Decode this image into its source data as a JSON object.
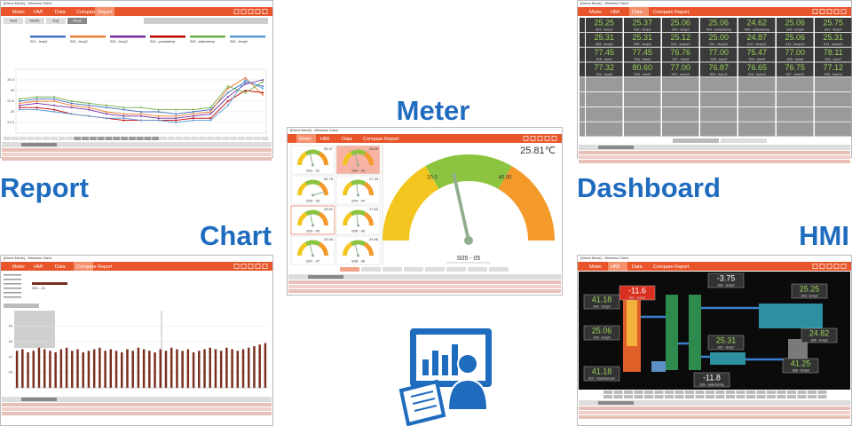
{
  "labels": {
    "report": "Report",
    "meter": "Meter",
    "dashboard": "Dashboard",
    "chart": "Chart",
    "hmi": "HMI"
  },
  "window_title": "[Direct Mode] - Wireless Client",
  "tabs": [
    "Meter",
    "HMI",
    "Data",
    "Compare",
    "Report"
  ],
  "report": {
    "periods": [
      "Year",
      "Month",
      "Day",
      "Week"
    ],
    "ylim": [
      24,
      27
    ],
    "yticks": [
      24.5,
      25,
      25.5,
      26,
      26.5
    ],
    "series": [
      {
        "name": "S01 - temp1",
        "color": "#4472c4",
        "values": [
          25.5,
          25.6,
          25.6,
          25.4,
          25.3,
          25.2,
          25.1,
          25.0,
          25.0,
          24.9,
          25.0,
          25.1,
          25.9,
          26.4,
          26.2
        ]
      },
      {
        "name": "S02 - temp2",
        "color": "#ed7d31",
        "values": [
          25.4,
          25.5,
          25.5,
          25.3,
          25.2,
          25.0,
          24.9,
          24.9,
          24.8,
          24.8,
          24.9,
          25.0,
          26.1,
          26.6,
          25.8
        ]
      },
      {
        "name": "S03 - temp3",
        "color": "#7030a0",
        "values": [
          25.3,
          25.4,
          25.3,
          25.2,
          25.1,
          24.9,
          24.8,
          24.8,
          24.7,
          24.7,
          24.8,
          24.9,
          25.7,
          26.3,
          26.5
        ]
      },
      {
        "name": "S04 - pumpstemp",
        "color": "#c00000",
        "values": [
          25.2,
          25.2,
          25.1,
          24.9,
          24.8,
          24.7,
          24.6,
          24.6,
          24.6,
          24.6,
          24.7,
          24.7,
          25.5,
          26.0,
          25.9
        ]
      },
      {
        "name": "S05 - waterstemp",
        "color": "#70ad47",
        "values": [
          25.6,
          25.7,
          25.7,
          25.5,
          25.4,
          25.3,
          25.2,
          25.2,
          25.1,
          25.1,
          25.1,
          25.2,
          26.2,
          25.9,
          26.4
        ]
      },
      {
        "name": "S06 - temp6",
        "color": "#5b9bd5",
        "values": [
          25.1,
          25.1,
          25.0,
          24.9,
          24.8,
          24.7,
          24.7,
          24.6,
          24.6,
          24.5,
          24.6,
          24.6,
          25.3,
          26.5,
          26.1
        ]
      }
    ]
  },
  "meter": {
    "reading": "25.81℃",
    "gauge_label": "S05 - 05",
    "value": 25.81,
    "ticks": [
      {
        "value": 20,
        "label": "20.0"
      },
      {
        "value": 40,
        "label": "40.00"
      }
    ],
    "small_gauges": [
      {
        "label": "S01 - 01",
        "value": 25.37
      },
      {
        "label": "S02 - 02",
        "value": 25.09
      },
      {
        "label": "S03 - 03",
        "value": 54.75
      },
      {
        "label": "S04 - 04",
        "value": 27.43
      },
      {
        "label": "S05 - 05",
        "value": 25.61
      },
      {
        "label": "S06 - 06",
        "value": 27.62
      },
      {
        "label": "S07 - 07",
        "value": 25.06
      },
      {
        "label": "S08 - 08",
        "value": 24.98
      }
    ]
  },
  "dashboard": {
    "tiles": [
      {
        "value": "25.25",
        "label": "S01 - temp1"
      },
      {
        "value": "25.37",
        "label": "S02 - temp2"
      },
      {
        "value": "25.06",
        "label": "S03 - temp3"
      },
      {
        "value": "25.06",
        "label": "S04 - pumpstemp"
      },
      {
        "value": "24.62",
        "label": "S05 - waterstemp"
      },
      {
        "value": "25.06",
        "label": "S06 - temp6"
      },
      {
        "value": "25.75",
        "label": "S07 - temp7"
      },
      {
        "value": "25.31",
        "label": "S08 - temp8"
      },
      {
        "value": "25.31",
        "label": "S09 - temp9"
      },
      {
        "value": "25.12",
        "label": "S10 - temp10"
      },
      {
        "value": "25.00",
        "label": "S11 - temp11"
      },
      {
        "value": "24.87",
        "label": "S12 - temp12"
      },
      {
        "value": "25.06",
        "label": "S13 - temp13"
      },
      {
        "value": "25.31",
        "label": "S14 - temp14"
      },
      {
        "value": "77.45",
        "label": "S15 - hum1"
      },
      {
        "value": "77.45",
        "label": "S16 - hum2"
      },
      {
        "value": "76.76",
        "label": "S17 - hum3"
      },
      {
        "value": "77.00",
        "label": "S18 - hum4"
      },
      {
        "value": "75.47",
        "label": "S19 - hum5"
      },
      {
        "value": "77.00",
        "label": "S20 - hum6"
      },
      {
        "value": "78.11",
        "label": "S21 - hum7"
      },
      {
        "value": "77.32",
        "label": "S22 - hum8"
      },
      {
        "value": "80.60",
        "label": "S23 - hum9"
      },
      {
        "value": "77.00",
        "label": "S24 - hum10"
      },
      {
        "value": "76.87",
        "label": "S25 - hum11"
      },
      {
        "value": "76.65",
        "label": "S26 - hum12"
      },
      {
        "value": "76.75",
        "label": "S27 - hum13"
      },
      {
        "value": "77.12",
        "label": "S28 - hum14"
      }
    ]
  },
  "chart": {
    "series_name": "S01 - 01",
    "color": "#7b2f1e",
    "ylim": [
      45,
      50
    ],
    "yticks": [
      46,
      47,
      48,
      49
    ],
    "values": [
      47.4,
      47.5,
      47.3,
      47.4,
      47.6,
      47.5,
      47.4,
      47.3,
      47.5,
      47.6,
      47.4,
      47.5,
      47.3,
      47.4,
      47.5,
      47.6,
      47.4,
      47.5,
      47.4,
      47.3,
      47.5,
      47.4,
      47.6,
      47.5,
      47.4,
      47.3,
      47.5,
      47.4,
      47.6,
      47.5,
      47.4,
      47.5,
      47.3,
      47.4,
      47.5,
      47.6,
      47.5,
      47.4,
      47.6,
      47.5,
      47.4,
      47.5,
      47.6,
      47.7,
      47.8,
      47.9
    ]
  },
  "hmi": {
    "readings": [
      {
        "value": "-11.6",
        "label": "S01 - temp1"
      },
      {
        "value": "-3.75",
        "label": "S02 - temp2"
      },
      {
        "value": "25.25",
        "label": "S03 - temp3"
      },
      {
        "value": "41.18",
        "label": "S04 - temp4"
      },
      {
        "value": "25.06",
        "label": "S05 - temp5"
      },
      {
        "value": "24.82",
        "label": "S06 - temp6"
      },
      {
        "value": "25.31",
        "label": "S07 - temp7"
      },
      {
        "value": "41.25",
        "label": "S08 - temp8"
      },
      {
        "value": "-11.8",
        "label": "S09 - waterstemp"
      },
      {
        "value": "41.18",
        "label": "S10 - machineroom"
      }
    ]
  }
}
